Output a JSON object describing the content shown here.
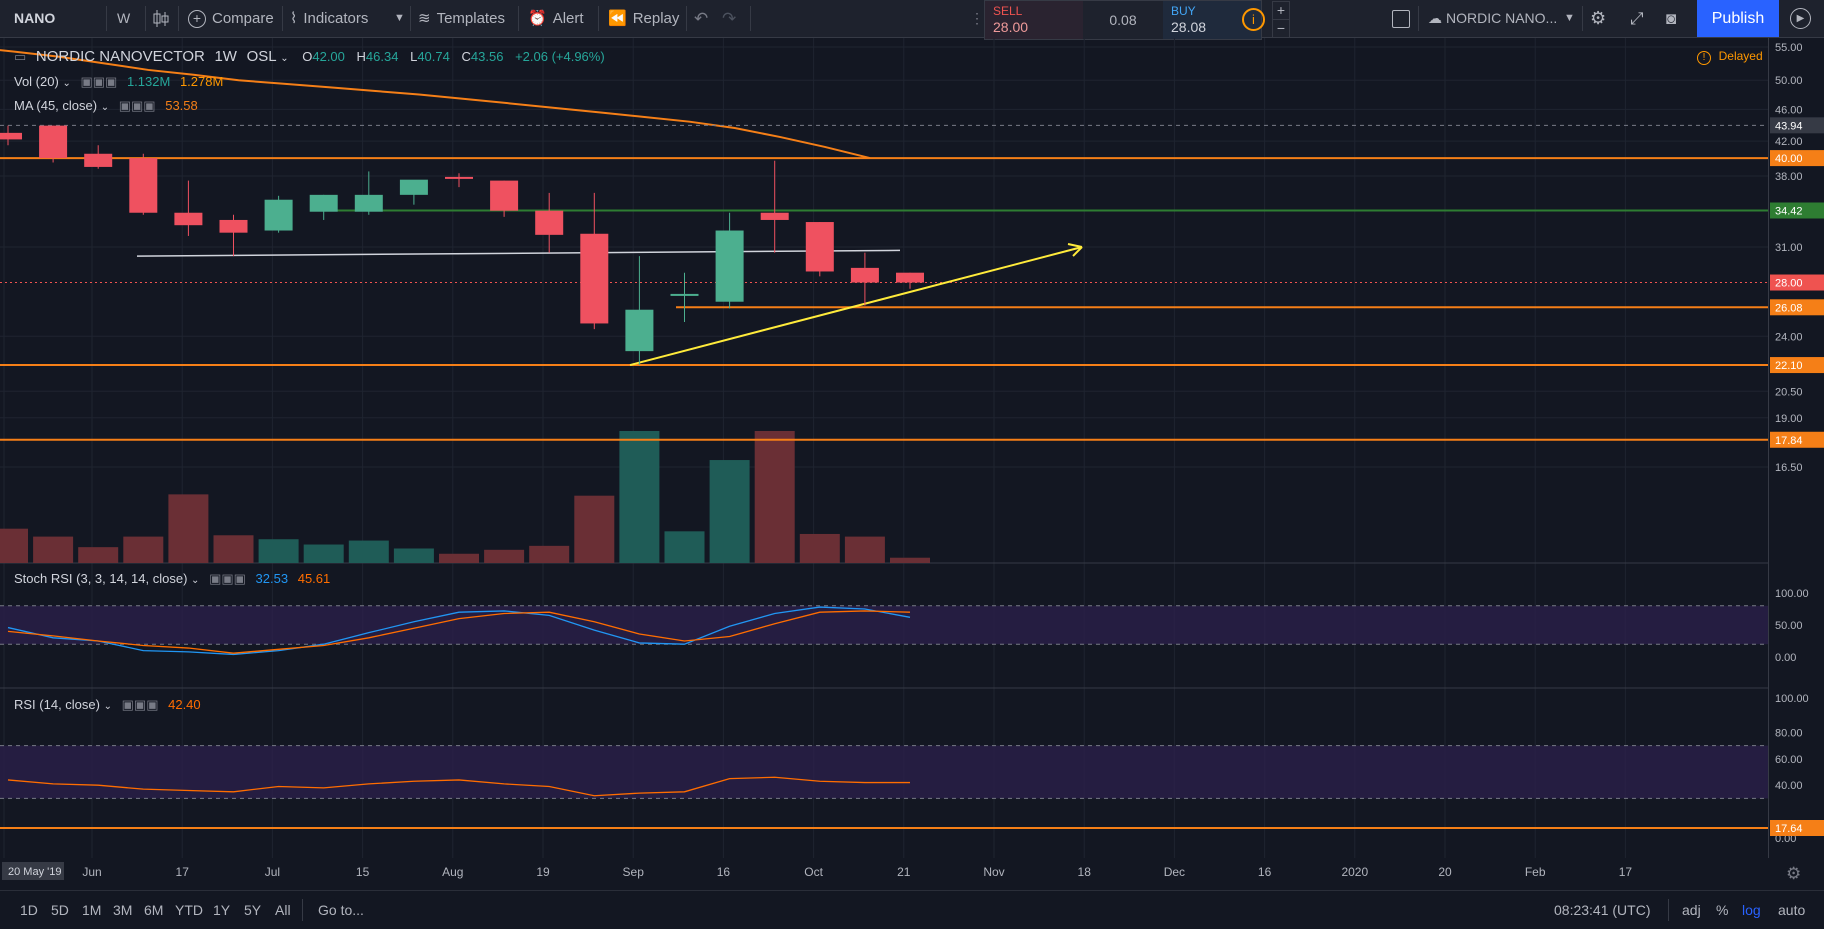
{
  "toolbar": {
    "symbol": "NANO",
    "interval": "W",
    "compare": "Compare",
    "indicators": "Indicators",
    "templates": "Templates",
    "alert": "Alert",
    "replay": "Replay",
    "sell_label": "SELL",
    "sell_price": "28.00",
    "spread": "0.08",
    "buy_label": "BUY",
    "buy_price": "28.08",
    "layout_name": "NORDIC NANO...",
    "publish": "Publish"
  },
  "legend": {
    "title": "NORDIC NANOVECTOR",
    "interval": "1W",
    "exchange": "OSL",
    "open_label": "O",
    "open": "42.00",
    "high_label": "H",
    "high": "46.34",
    "low_label": "L",
    "low": "40.74",
    "close_label": "C",
    "close": "43.56",
    "change": "+2.06 (+4.96%)",
    "vol_label": "Vol (20)",
    "vol_value1": "1.132M",
    "vol_value2": "1.278M",
    "ma_label": "MA (45, close)",
    "ma_value": "53.58",
    "delayed": "Delayed"
  },
  "stoch": {
    "label": "Stoch RSI (3, 3, 14, 14, close)",
    "k": "32.53",
    "d": "45.61"
  },
  "rsi": {
    "label": "RSI (14, close)",
    "value": "42.40"
  },
  "price_scale": {
    "ticks": [
      "55.00",
      "50.00",
      "46.00",
      "42.00",
      "38.00",
      "31.00",
      "24.00",
      "20.50",
      "19.00",
      "16.50"
    ],
    "badges": [
      {
        "text": "43.94",
        "color": "#363a45"
      },
      {
        "text": "40.00",
        "color": "#f57f17"
      },
      {
        "text": "34.42",
        "color": "#2e7d32"
      },
      {
        "text": "28.00",
        "color": "#ef5350"
      },
      {
        "text": "26.08",
        "color": "#f57f17"
      },
      {
        "text": "22.10",
        "color": "#f57f17"
      },
      {
        "text": "17.84",
        "color": "#f57f17"
      }
    ],
    "stoch_ticks": [
      "100.00",
      "50.00",
      "0.00"
    ],
    "rsi_ticks": [
      "100.00",
      "80.00",
      "60.00",
      "40.00",
      "0.00"
    ],
    "rsi_badge": "17.64"
  },
  "time_axis": [
    "20 May '19",
    "Jun",
    "17",
    "Jul",
    "15",
    "Aug",
    "19",
    "Sep",
    "16",
    "Oct",
    "21",
    "Nov",
    "18",
    "Dec",
    "16",
    "2020",
    "20",
    "Feb",
    "17"
  ],
  "bottom": {
    "ranges": [
      "1D",
      "5D",
      "1M",
      "3M",
      "6M",
      "YTD",
      "1Y",
      "5Y",
      "All"
    ],
    "goto": "Go to...",
    "clock": "08:23:41 (UTC)",
    "adj": "adj",
    "percent": "%",
    "log": "log",
    "auto": "auto"
  },
  "colors": {
    "up": "#4caf8f",
    "down": "#ef5160",
    "ma": "#f57f17",
    "hline": "#f57f17",
    "green_line": "#2e7d32",
    "accent": "#2962ff"
  },
  "chart_data": {
    "type": "candlestick",
    "interval": "1W",
    "log_scale": true,
    "candles": [
      {
        "o": 43.0,
        "h": 43.9,
        "l": 41.5,
        "c": 42.2
      },
      {
        "o": 43.9,
        "h": 43.9,
        "l": 39.5,
        "c": 40.0
      },
      {
        "o": 40.5,
        "h": 41.5,
        "l": 38.8,
        "c": 39.0
      },
      {
        "o": 40.0,
        "h": 40.5,
        "l": 34.0,
        "c": 34.2
      },
      {
        "o": 34.2,
        "h": 37.5,
        "l": 32.0,
        "c": 33.0
      },
      {
        "o": 33.5,
        "h": 34.0,
        "l": 30.2,
        "c": 32.3
      },
      {
        "o": 32.5,
        "h": 35.9,
        "l": 32.3,
        "c": 35.5
      },
      {
        "o": 34.3,
        "h": 36.0,
        "l": 33.5,
        "c": 36.0
      },
      {
        "o": 34.3,
        "h": 38.5,
        "l": 34.0,
        "c": 36.0
      },
      {
        "o": 36.0,
        "h": 37.5,
        "l": 35.0,
        "c": 37.6
      },
      {
        "o": 37.9,
        "h": 38.3,
        "l": 36.8,
        "c": 37.7
      },
      {
        "o": 37.5,
        "h": 37.5,
        "l": 33.8,
        "c": 34.4
      },
      {
        "o": 34.4,
        "h": 36.2,
        "l": 30.5,
        "c": 32.1
      },
      {
        "o": 32.2,
        "h": 36.2,
        "l": 24.5,
        "c": 24.9
      },
      {
        "o": 23.0,
        "h": 30.2,
        "l": 22.1,
        "c": 25.9
      },
      {
        "o": 27.0,
        "h": 28.8,
        "l": 25.0,
        "c": 27.1
      },
      {
        "o": 26.5,
        "h": 34.2,
        "l": 26.0,
        "c": 32.5
      },
      {
        "o": 34.2,
        "h": 39.7,
        "l": 30.5,
        "c": 33.5
      },
      {
        "o": 33.3,
        "h": 33.3,
        "l": 28.5,
        "c": 28.9
      },
      {
        "o": 29.2,
        "h": 30.5,
        "l": 26.2,
        "c": 28.0
      },
      {
        "o": 28.8,
        "h": 28.8,
        "l": 27.5,
        "c": 28.0
      }
    ],
    "volume_relative": [
      0.26,
      0.2,
      0.12,
      0.2,
      0.52,
      0.21,
      0.18,
      0.14,
      0.17,
      0.11,
      0.07,
      0.1,
      0.13,
      0.51,
      1.0,
      0.24,
      0.78,
      1.0,
      0.22,
      0.2,
      0.04
    ],
    "ma45": [
      55.0,
      54.3,
      53.5,
      52.5,
      51.5,
      50.8,
      50.0,
      49.5,
      49.0,
      48.5,
      48.0,
      47.4,
      46.8,
      46.2,
      45.6,
      45.0,
      44.4,
      43.6,
      42.5,
      41.3,
      40.0
    ],
    "horizontal_lines": [
      40.0,
      26.08,
      22.1,
      17.84
    ],
    "support_green": 34.42,
    "stoch_k": [
      46,
      30,
      25,
      10,
      8,
      4,
      10,
      20,
      38,
      55,
      70,
      72,
      65,
      42,
      22,
      20,
      48,
      68,
      78,
      75,
      62
    ],
    "stoch_d": [
      40,
      33,
      25,
      18,
      14,
      6,
      12,
      18,
      30,
      45,
      60,
      68,
      70,
      55,
      36,
      25,
      32,
      52,
      70,
      72,
      70
    ],
    "rsi": [
      44,
      41,
      40,
      37,
      36,
      35,
      39,
      38,
      41,
      43,
      44,
      41,
      39,
      32,
      34,
      35,
      45,
      46,
      43,
      42,
      42
    ]
  }
}
